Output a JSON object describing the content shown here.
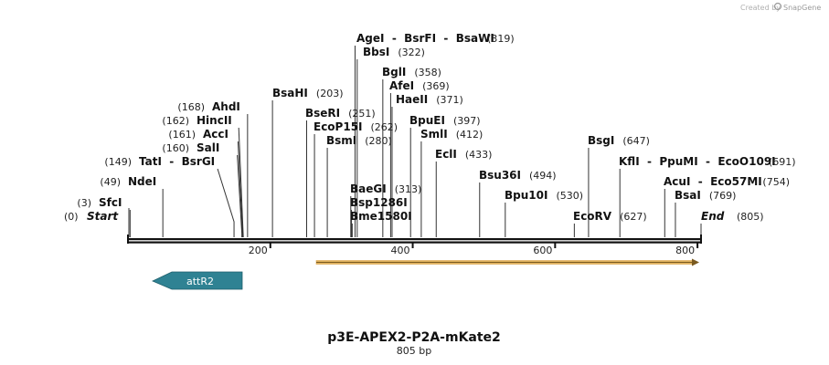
{
  "credit": {
    "prefix": "Created by",
    "brand": "SnapGene"
  },
  "map": {
    "name": "p3E-APEX2-P2A-mKate2",
    "length_label": "805 bp",
    "total_bp": 805,
    "ticks": [
      {
        "bp": 200,
        "label": "200"
      },
      {
        "bp": 400,
        "label": "400"
      },
      {
        "bp": 600,
        "label": "600"
      },
      {
        "bp": 800,
        "label": "800"
      }
    ],
    "start_label": {
      "name": "Start",
      "pos": "(0)"
    },
    "end_label": {
      "name": "End",
      "pos": "(805)"
    },
    "sites": [
      {
        "id": "sfci",
        "name": "SfcI",
        "pos": "(3)",
        "bp": 3
      },
      {
        "id": "ndei",
        "name": "NdeI",
        "pos": "(49)",
        "bp": 49
      },
      {
        "id": "tati",
        "name": "TatI  -  BsrGI",
        "pos": "(149)",
        "bp": 149
      },
      {
        "id": "sali",
        "name": "SalI",
        "pos": "(160)",
        "bp": 160
      },
      {
        "id": "acci",
        "name": "AccI",
        "pos": "(161)",
        "bp": 161
      },
      {
        "id": "hincii",
        "name": "HincII",
        "pos": "(162)",
        "bp": 162
      },
      {
        "id": "ahdi",
        "name": "AhdI",
        "pos": "(168)",
        "bp": 168
      },
      {
        "id": "bsahi",
        "name": "BsaHI",
        "pos": "(203)",
        "bp": 203
      },
      {
        "id": "bseri",
        "name": "BseRI",
        "pos": "(251)",
        "bp": 251
      },
      {
        "id": "ecop15i",
        "name": "EcoP15I",
        "pos": "(262)",
        "bp": 262
      },
      {
        "id": "bsmi",
        "name": "BsmI",
        "pos": "(280)",
        "bp": 280
      },
      {
        "id": "agei",
        "name": "AgeI  -  BsrFI  -  BsaWI",
        "pos": "(319)",
        "bp": 319
      },
      {
        "id": "bbsi",
        "name": "BbsI",
        "pos": "(322)",
        "bp": 322
      },
      {
        "id": "baegi",
        "name": "BaeGI",
        "pos": "(313)",
        "bp": 313
      },
      {
        "id": "bsp1286i",
        "name": "Bsp1286I",
        "pos": "",
        "bp": 314
      },
      {
        "id": "bme1580i",
        "name": "Bme1580I",
        "pos": "",
        "bp": 315
      },
      {
        "id": "bgli",
        "name": "BglI",
        "pos": "(358)",
        "bp": 358
      },
      {
        "id": "afei",
        "name": "AfeI",
        "pos": "(369)",
        "bp": 369
      },
      {
        "id": "haeii",
        "name": "HaeII",
        "pos": "(371)",
        "bp": 371
      },
      {
        "id": "bpuei",
        "name": "BpuEI",
        "pos": "(397)",
        "bp": 397
      },
      {
        "id": "smli",
        "name": "SmlI",
        "pos": "(412)",
        "bp": 412
      },
      {
        "id": "ecli",
        "name": "EclI",
        "pos": "(433)",
        "bp": 433
      },
      {
        "id": "bsu36i",
        "name": "Bsu36I",
        "pos": "(494)",
        "bp": 494
      },
      {
        "id": "bpu10i",
        "name": "Bpu10I",
        "pos": "(530)",
        "bp": 530
      },
      {
        "id": "ecorv",
        "name": "EcoRV",
        "pos": "(627)",
        "bp": 627
      },
      {
        "id": "bsgi",
        "name": "BsgI",
        "pos": "(647)",
        "bp": 647
      },
      {
        "id": "kfli",
        "name": "KflI  -  PpuMI  -  EcoO109I",
        "pos": "(691)",
        "bp": 691
      },
      {
        "id": "acui",
        "name": "AcuI  -  Eco57MI",
        "pos": "(754)",
        "bp": 754
      },
      {
        "id": "bsai",
        "name": "BsaI",
        "pos": "(769)",
        "bp": 769
      }
    ],
    "features": [
      {
        "name": "attR2",
        "color": "#2f8293",
        "direction": "reverse"
      },
      {
        "name": "",
        "color": "#f0c068",
        "direction": "forward"
      }
    ]
  }
}
